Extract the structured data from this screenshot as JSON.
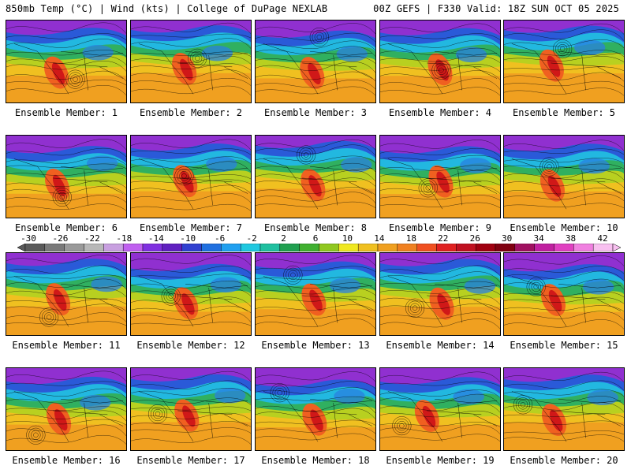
{
  "header": {
    "left": "850mb Temp (°C) | Wind (kts) | College of DuPage NEXLAB",
    "right": "00Z GEFS | F330 Valid: 18Z SUN OCT 05 2025"
  },
  "panels": [
    {
      "label": "Ensemble Member: 1"
    },
    {
      "label": "Ensemble Member: 2"
    },
    {
      "label": "Ensemble Member: 3"
    },
    {
      "label": "Ensemble Member: 4"
    },
    {
      "label": "Ensemble Member: 5"
    },
    {
      "label": "Ensemble Member: 6"
    },
    {
      "label": "Ensemble Member: 7"
    },
    {
      "label": "Ensemble Member: 8"
    },
    {
      "label": "Ensemble Member: 9"
    },
    {
      "label": "Ensemble Member: 10"
    },
    {
      "label": "Ensemble Member: 11"
    },
    {
      "label": "Ensemble Member: 12"
    },
    {
      "label": "Ensemble Member: 13"
    },
    {
      "label": "Ensemble Member: 14"
    },
    {
      "label": "Ensemble Member: 15"
    },
    {
      "label": "Ensemble Member: 16"
    },
    {
      "label": "Ensemble Member: 17"
    },
    {
      "label": "Ensemble Member: 18"
    },
    {
      "label": "Ensemble Member: 19"
    },
    {
      "label": "Ensemble Member: 20"
    }
  ],
  "colorbar": {
    "labels": [
      "-30",
      "-26",
      "-22",
      "-18",
      "-14",
      "-10",
      "-6",
      "-2",
      "2",
      "6",
      "10",
      "14",
      "18",
      "22",
      "26",
      "30",
      "34",
      "38",
      "42"
    ],
    "colors": [
      "#5a5a5a",
      "#7a7a7a",
      "#9a9a9a",
      "#b8b8b8",
      "#c8a0e0",
      "#c060f0",
      "#8030e0",
      "#6020c0",
      "#3040d0",
      "#2070e0",
      "#20a0f0",
      "#20c8e0",
      "#20c0a0",
      "#20a050",
      "#40b030",
      "#90c820",
      "#f0e820",
      "#f0c020",
      "#f0a020",
      "#f08020",
      "#f05020",
      "#e02020",
      "#c01020",
      "#a00010",
      "#800010",
      "#a01060",
      "#c020a0",
      "#e040c0",
      "#f080e0",
      "#f8c0f0"
    ]
  }
}
